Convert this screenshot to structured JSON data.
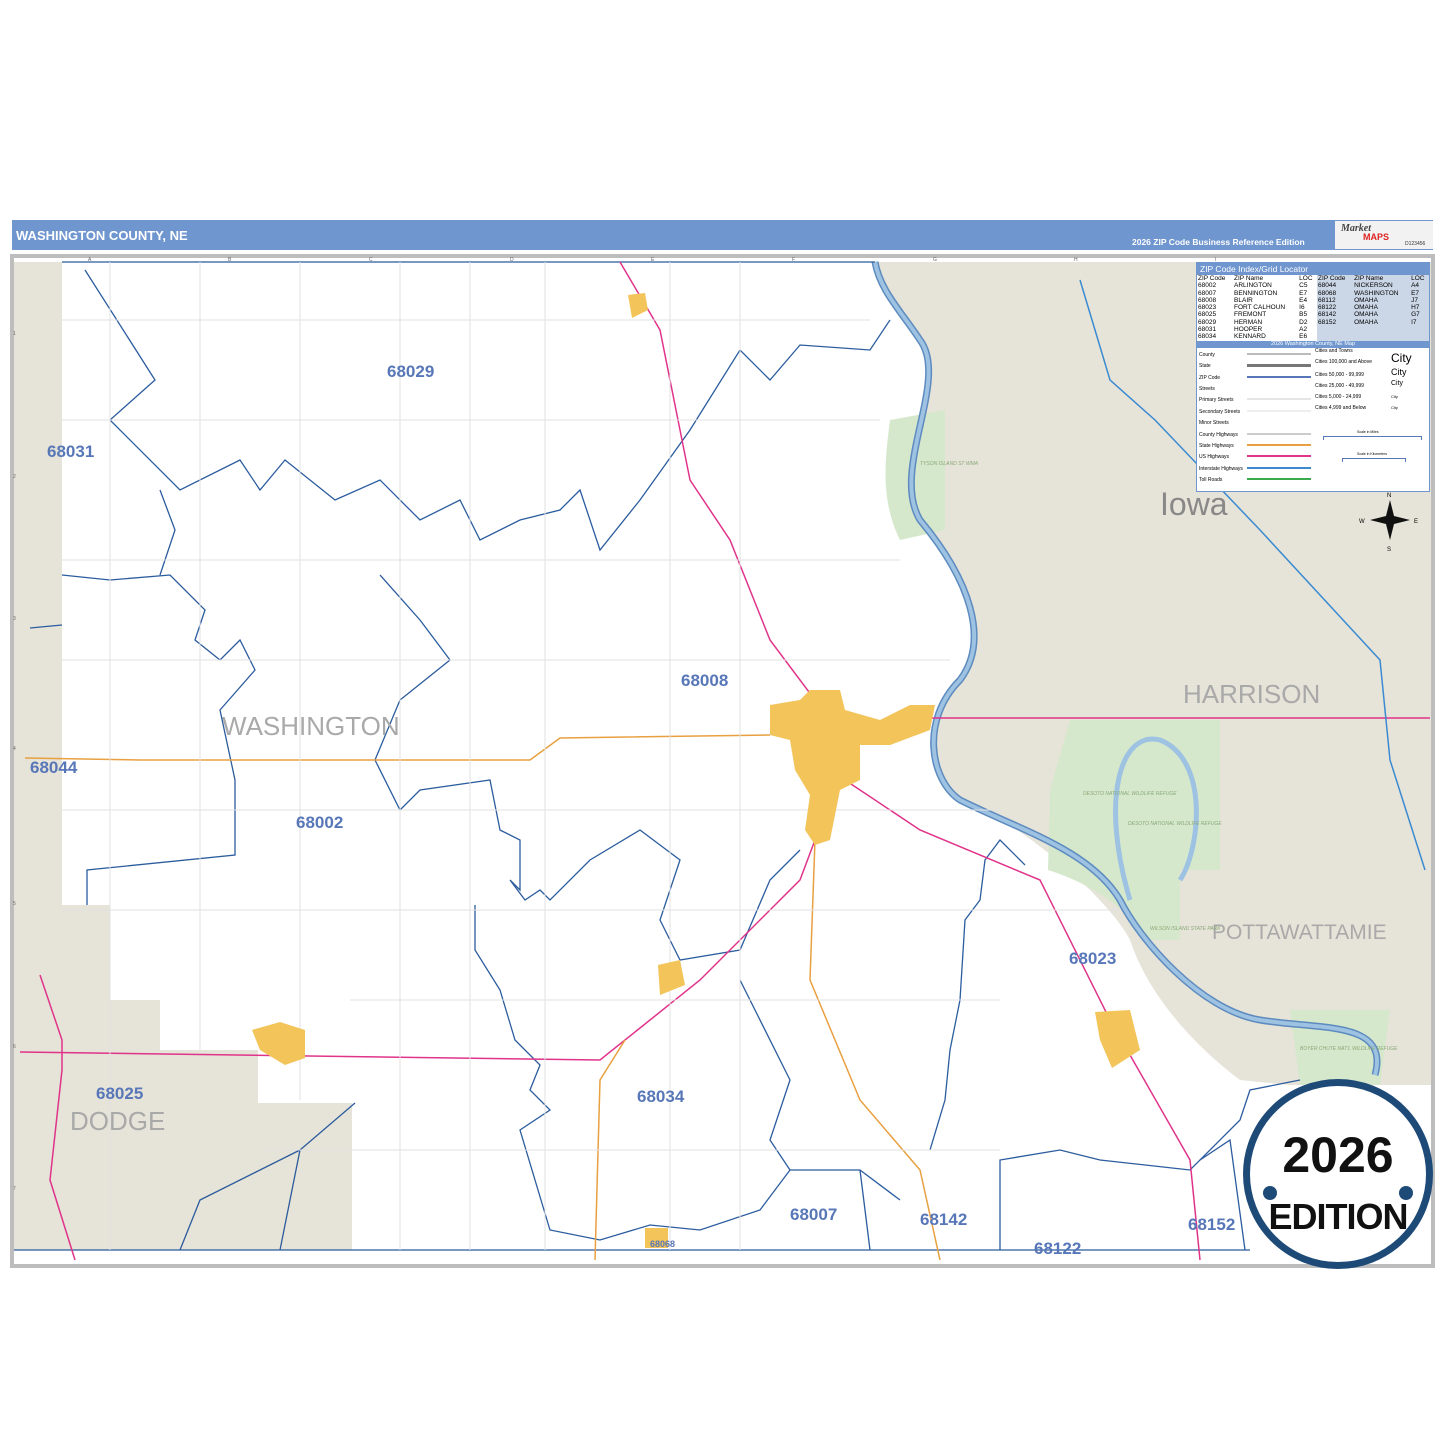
{
  "header": {
    "title": "WASHINGTON COUNTY, NE",
    "subtitle": "2026 ZIP Code Business Reference Edition"
  },
  "logo": {
    "text_top": "Market",
    "text_bottom": "MAPS",
    "id": "D123456"
  },
  "colors": {
    "header": "#6f96cf",
    "zip_boundary": "#2b5c9e",
    "us_highway": "#e0338a",
    "state_highway": "#e8a040",
    "city_area": "#f2c45a",
    "outside_county": "#e6e3d8",
    "park": "#d6e8cc",
    "water": "#9ec3e2",
    "badge_ring": "#1e4a78"
  },
  "map": {
    "counties": [
      "WASHINGTON",
      "DODGE",
      "HARRISON",
      "POTTAWATTAMIE"
    ],
    "state": "Iowa",
    "zip_labels": [
      "68029",
      "68031",
      "68008",
      "68044",
      "68002",
      "68023",
      "68025",
      "68034",
      "68007",
      "68142",
      "68122",
      "68152",
      "68068"
    ],
    "parks": [
      "TYSON ISLAND ST WMA",
      "DESOTO NATIONAL WILDLIFE REFUGE",
      "DESOTO NATIONAL WILDLIFE REFUGE",
      "WILSON ISLAND STATE PARK",
      "BOYER CHUTE NAT'L WILDLIFE REFUGE"
    ],
    "grid_cols": [
      "A",
      "B",
      "C",
      "D",
      "E",
      "F",
      "G",
      "H",
      "I"
    ],
    "grid_rows": [
      "1",
      "2",
      "3",
      "4",
      "5",
      "6",
      "7"
    ],
    "compass": [
      "N",
      "S",
      "E",
      "W"
    ]
  },
  "index": {
    "title": "ZIP Code Index/Grid Locator",
    "headers": [
      "ZIP Code",
      "ZIP Name",
      "LOC"
    ],
    "left": [
      [
        "68002",
        "ARLINGTON",
        "C5"
      ],
      [
        "68007",
        "BENNINGTON",
        "E7"
      ],
      [
        "68008",
        "BLAIR",
        "E4"
      ],
      [
        "68023",
        "FORT CALHOUN",
        "I6"
      ],
      [
        "68025",
        "FREMONT",
        "B5"
      ],
      [
        "68029",
        "HERMAN",
        "D2"
      ],
      [
        "68031",
        "HOOPER",
        "A2"
      ],
      [
        "68034",
        "KENNARD",
        "E6"
      ]
    ],
    "right": [
      [
        "68044",
        "NICKERSON",
        "A4"
      ],
      [
        "68068",
        "WASHINGTON",
        "E7"
      ],
      [
        "68112",
        "OMAHA",
        "J7"
      ],
      [
        "68122",
        "OMAHA",
        "H7"
      ],
      [
        "68142",
        "OMAHA",
        "G7"
      ],
      [
        "68152",
        "OMAHA",
        "I7"
      ]
    ],
    "map_title": "2026 Washington County, NE Map"
  },
  "legend": {
    "lines": [
      "County",
      "State",
      "ZIP Code",
      "Streets",
      "Primary Streets",
      "Secondary Streets",
      "Minor Streets",
      "County Highways",
      "State Highways",
      "US Highways",
      "Interstate Highways",
      "Toll Roads"
    ],
    "cities_title": "Cities and Towns",
    "cities": [
      "Cities 100,000 and Above",
      "Cities 50,000 - 99,999",
      "Cities 25,000 - 49,999",
      "Cities 5,000 - 24,999",
      "Cities 4,999 and Below"
    ],
    "city_sample": "City",
    "scale_miles": "Scale in Miles",
    "scale_km": "Scale in Kilometers"
  },
  "badge": {
    "year": "2026",
    "label": "EDITION"
  }
}
